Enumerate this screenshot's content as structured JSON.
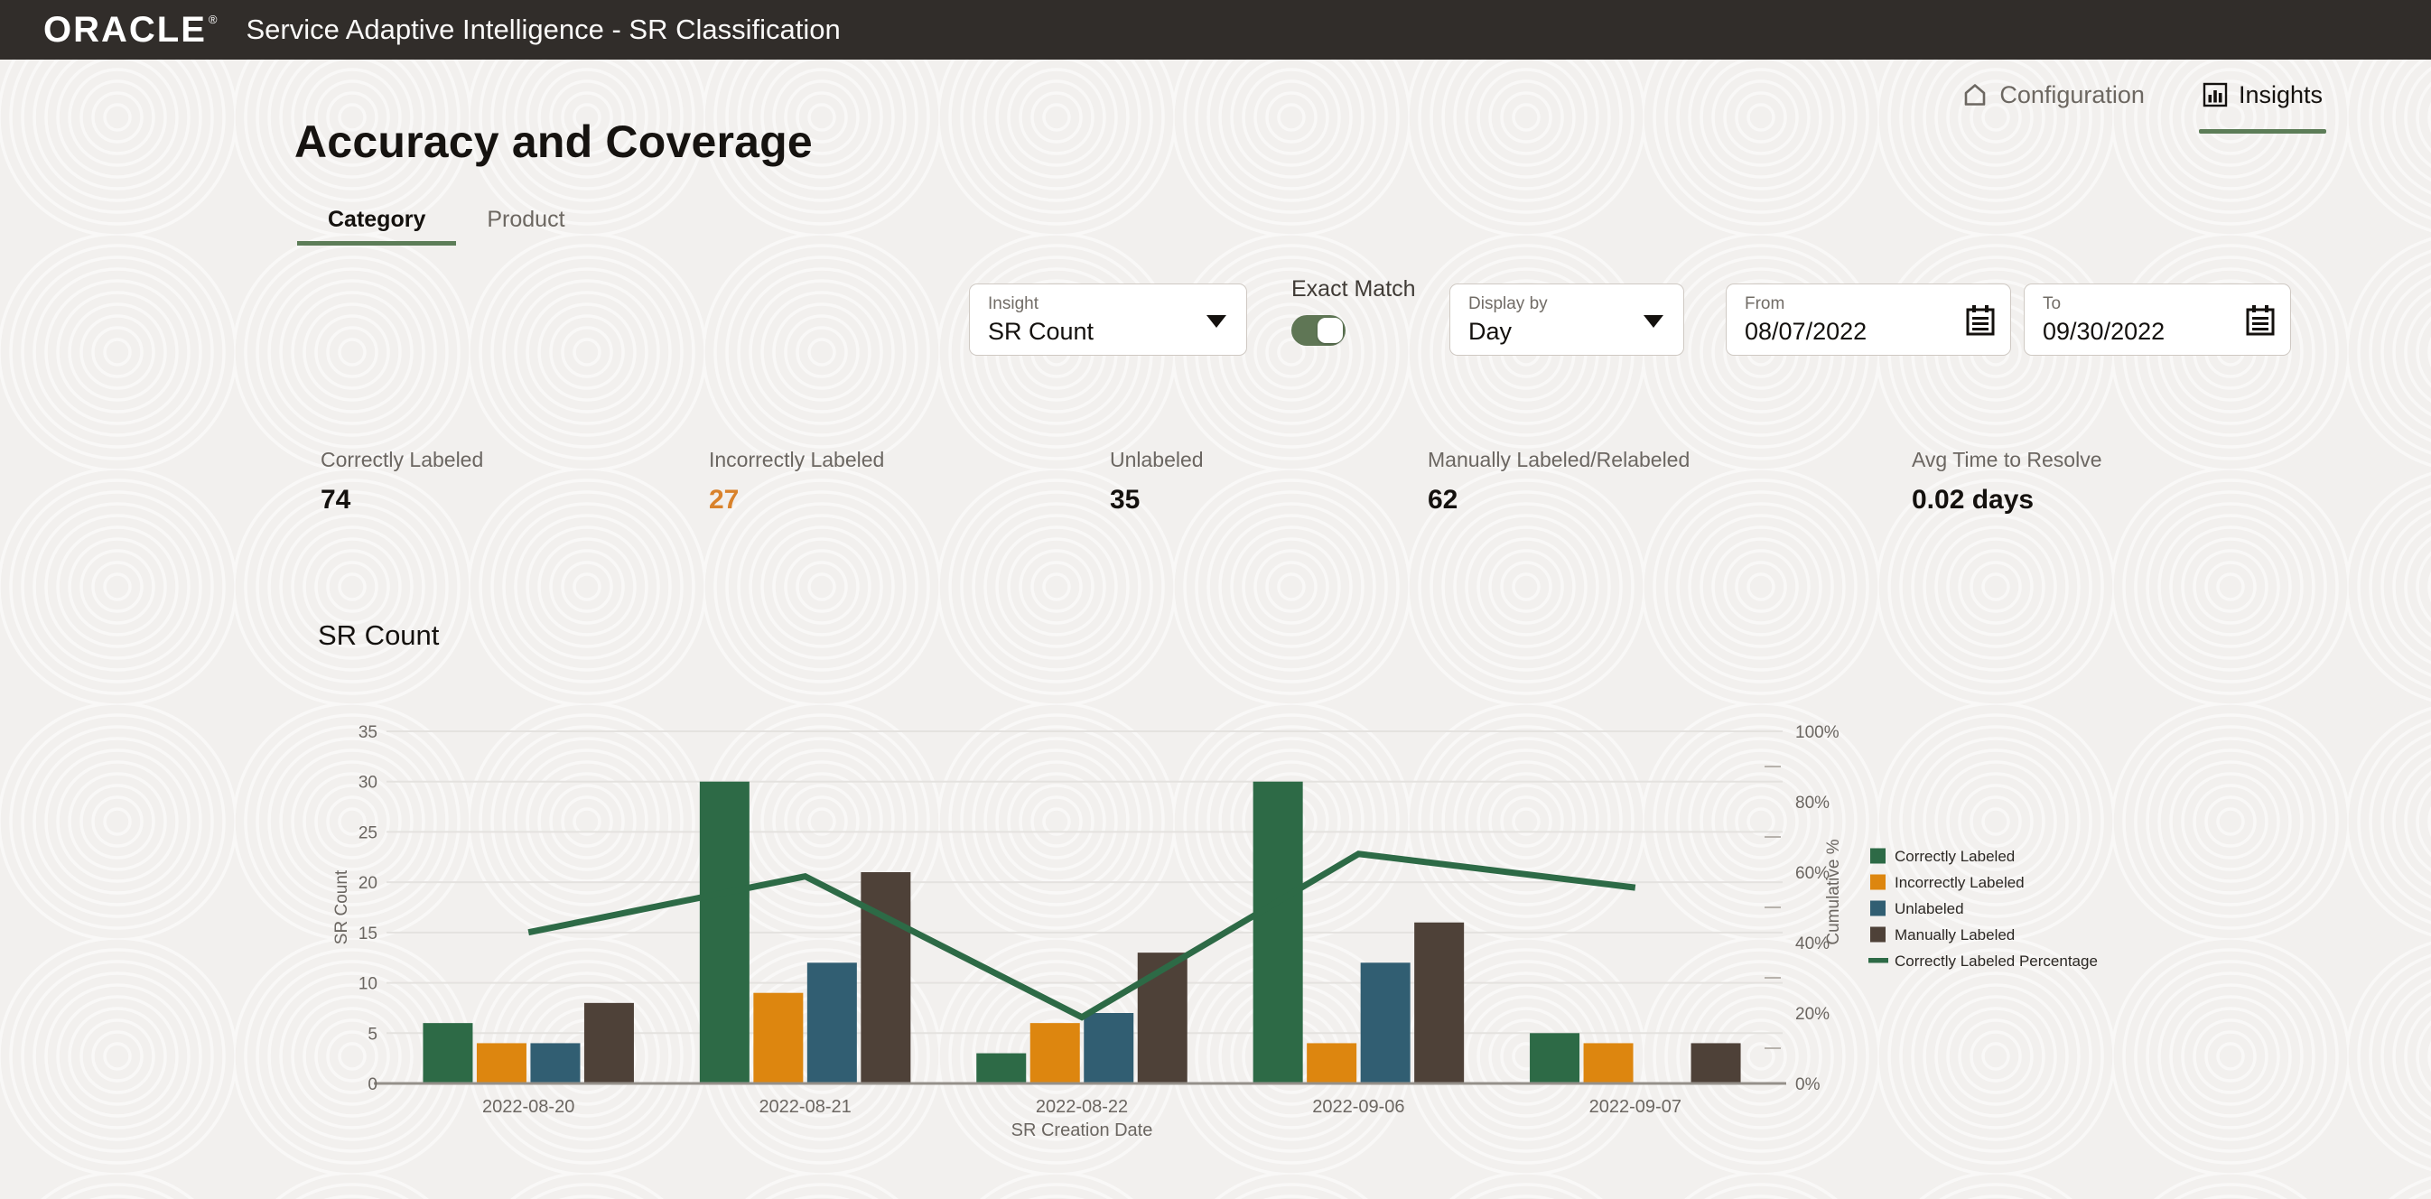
{
  "header": {
    "logo": "ORACLE",
    "registered": "®",
    "title": "Service Adaptive Intelligence - SR Classification"
  },
  "nav": {
    "configuration": "Configuration",
    "insights": "Insights"
  },
  "page": {
    "title": "Accuracy and Coverage"
  },
  "tabs": [
    {
      "label": "Category",
      "active": true
    },
    {
      "label": "Product",
      "active": false
    }
  ],
  "filters": {
    "insight": {
      "label": "Insight",
      "value": "SR Count"
    },
    "exact_match": {
      "label": "Exact Match",
      "on": true
    },
    "display_by": {
      "label": "Display by",
      "value": "Day"
    },
    "from": {
      "label": "From",
      "value": "08/07/2022"
    },
    "to": {
      "label": "To",
      "value": "09/30/2022"
    }
  },
  "stats": [
    {
      "label": "Correctly Labeled",
      "value": "74",
      "color": "#14110e"
    },
    {
      "label": "Incorrectly Labeled",
      "value": "27",
      "color": "#d9822b"
    },
    {
      "label": "Unlabeled",
      "value": "35",
      "color": "#14110e"
    },
    {
      "label": "Manually Labeled/Relabeled",
      "value": "62",
      "color": "#14110e"
    },
    {
      "label": "Avg Time to Resolve",
      "value": "0.02 days",
      "color": "#14110e"
    }
  ],
  "chart_data": {
    "type": "bar+line",
    "title": "SR Count",
    "categories": [
      "2022-08-20",
      "2022-08-21",
      "2022-08-22",
      "2022-09-06",
      "2022-09-07"
    ],
    "series": [
      {
        "name": "Correctly Labeled",
        "color": "#2d6a46",
        "values": [
          6,
          30,
          3,
          30,
          5
        ]
      },
      {
        "name": "Incorrectly Labeled",
        "color": "#dd860f",
        "values": [
          4,
          9,
          6,
          4,
          4
        ]
      },
      {
        "name": "Unlabeled",
        "color": "#315e72",
        "values": [
          4,
          12,
          7,
          12,
          0
        ]
      },
      {
        "name": "Manually Labeled",
        "color": "#4e4138",
        "values": [
          8,
          21,
          13,
          16,
          4
        ]
      }
    ],
    "line_series": {
      "name": "Correctly Labeled Percentage",
      "color": "#2d6a46",
      "values_pct": [
        42.9,
        58.8,
        18.8,
        65.2,
        55.6
      ]
    },
    "xlabel": "SR Creation Date",
    "ylabel_left": "SR Count",
    "ylabel_right": "Cumulative %",
    "ylim_left": [
      0,
      35
    ],
    "yticks_left": [
      0,
      5,
      10,
      15,
      20,
      25,
      30,
      35
    ],
    "ylim_right": [
      0,
      100
    ],
    "yticks_right": [
      "0%",
      "20%",
      "40%",
      "60%",
      "80%",
      "100%"
    ],
    "grid": true,
    "legend_position": "right",
    "legend": [
      "Correctly Labeled",
      "Incorrectly Labeled",
      "Unlabeled",
      "Manually Labeled",
      "Correctly Labeled Percentage"
    ]
  }
}
